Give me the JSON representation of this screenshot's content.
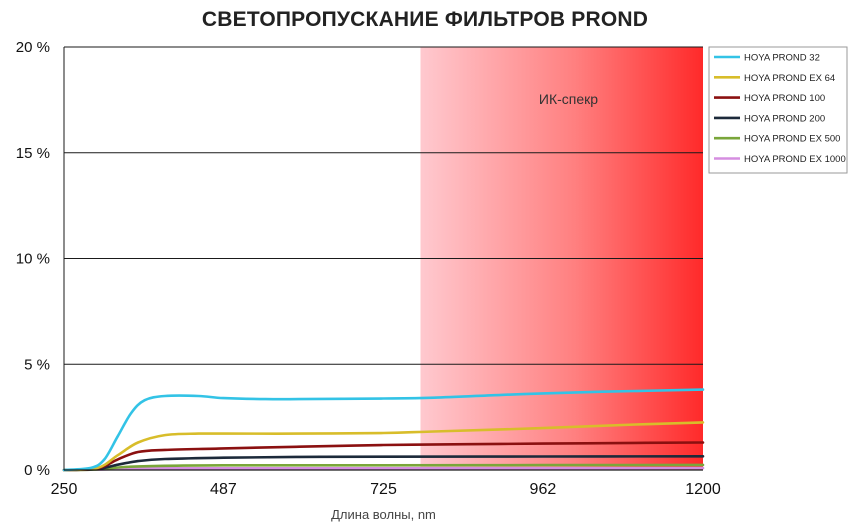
{
  "chart_data": {
    "type": "line",
    "title": "СВЕТОПРОПУСКАНИЕ ФИЛЬТРОВ PROND",
    "xlabel": "Длина волны, nm",
    "ylabel": "",
    "xlim": [
      250,
      1200
    ],
    "ylim": [
      0,
      20
    ],
    "x_ticks": [
      250,
      487,
      725,
      962,
      1200
    ],
    "x_tick_labels": [
      "250",
      "487",
      "725",
      "962",
      "1200"
    ],
    "y_ticks": [
      0,
      5,
      10,
      15,
      20
    ],
    "y_tick_labels": [
      "0 %",
      "5 %",
      "10 %",
      "15 %",
      "20 %"
    ],
    "grid": "horizontal",
    "legend_position": "right",
    "ir_region": {
      "label": "ИК-спекр",
      "x_start": 780,
      "x_end": 1200
    },
    "series": [
      {
        "name": "HOYA PROND 32",
        "color": "#33c3e6",
        "points": [
          [
            250,
            0
          ],
          [
            290,
            0.1
          ],
          [
            310,
            0.5
          ],
          [
            330,
            1.6
          ],
          [
            350,
            2.7
          ],
          [
            370,
            3.3
          ],
          [
            400,
            3.5
          ],
          [
            450,
            3.5
          ],
          [
            487,
            3.4
          ],
          [
            550,
            3.35
          ],
          [
            600,
            3.35
          ],
          [
            725,
            3.38
          ],
          [
            800,
            3.42
          ],
          [
            900,
            3.55
          ],
          [
            962,
            3.62
          ],
          [
            1050,
            3.7
          ],
          [
            1200,
            3.8
          ]
        ]
      },
      {
        "name": "HOYA PROND EX 64",
        "color": "#d8bd2a",
        "points": [
          [
            250,
            0
          ],
          [
            300,
            0.1
          ],
          [
            330,
            0.7
          ],
          [
            360,
            1.3
          ],
          [
            400,
            1.65
          ],
          [
            450,
            1.72
          ],
          [
            487,
            1.72
          ],
          [
            600,
            1.72
          ],
          [
            725,
            1.75
          ],
          [
            800,
            1.82
          ],
          [
            962,
            1.98
          ],
          [
            1100,
            2.15
          ],
          [
            1200,
            2.25
          ]
        ]
      },
      {
        "name": "HOYA PROND 100",
        "color": "#8b1010",
        "points": [
          [
            250,
            0
          ],
          [
            300,
            0.08
          ],
          [
            330,
            0.5
          ],
          [
            360,
            0.85
          ],
          [
            400,
            0.95
          ],
          [
            487,
            1.02
          ],
          [
            600,
            1.1
          ],
          [
            725,
            1.18
          ],
          [
            850,
            1.22
          ],
          [
            962,
            1.25
          ],
          [
            1100,
            1.28
          ],
          [
            1200,
            1.3
          ]
        ]
      },
      {
        "name": "HOYA PROND 200",
        "color": "#1c2a3a",
        "points": [
          [
            250,
            0
          ],
          [
            300,
            0.05
          ],
          [
            330,
            0.25
          ],
          [
            360,
            0.42
          ],
          [
            400,
            0.52
          ],
          [
            487,
            0.58
          ],
          [
            600,
            0.62
          ],
          [
            725,
            0.63
          ],
          [
            962,
            0.64
          ],
          [
            1200,
            0.65
          ]
        ]
      },
      {
        "name": "HOYA PROND EX 500",
        "color": "#7aa63a",
        "points": [
          [
            250,
            0
          ],
          [
            300,
            0.03
          ],
          [
            340,
            0.14
          ],
          [
            400,
            0.2
          ],
          [
            487,
            0.22
          ],
          [
            725,
            0.22
          ],
          [
            962,
            0.23
          ],
          [
            1200,
            0.24
          ]
        ]
      },
      {
        "name": "HOYA PROND EX 1000",
        "color": "#d58ee0",
        "points": [
          [
            250,
            0
          ],
          [
            300,
            0.02
          ],
          [
            340,
            0.06
          ],
          [
            400,
            0.08
          ],
          [
            725,
            0.08
          ],
          [
            1200,
            0.09
          ]
        ]
      }
    ]
  }
}
